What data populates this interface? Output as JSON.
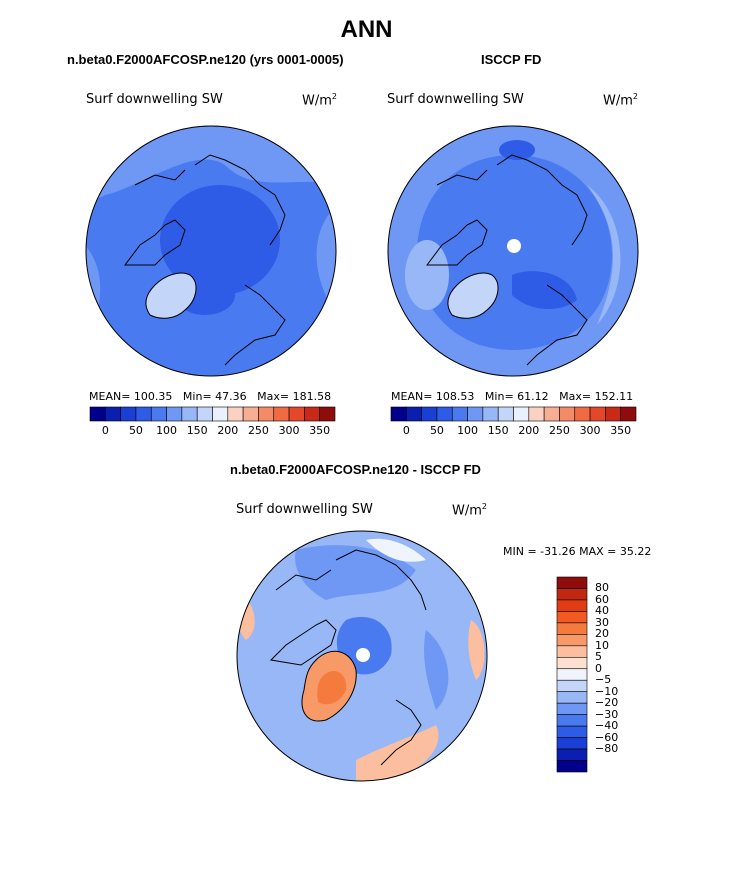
{
  "title": "ANN",
  "panels": [
    {
      "case": "n.beta0.F2000AFCOSP.ne120 (yrs 0001-0005)",
      "variable": "Surf downwelling SW",
      "units_prefix": "W/m",
      "units_sup": "2",
      "mean_label": "MEAN=",
      "mean": "100.35",
      "min_label": "Min=",
      "min": "47.36",
      "max_label": "Max=",
      "max": "181.58"
    },
    {
      "case": "ISCCP FD",
      "variable": "Surf downwelling SW",
      "units_prefix": "W/m",
      "units_sup": "2",
      "mean_label": "MEAN=",
      "mean": "108.53",
      "min_label": "Min=",
      "min": "61.12",
      "max_label": "Max=",
      "max": "152.11"
    },
    {
      "case": "n.beta0.F2000AFCOSP.ne120 - ISCCP FD",
      "variable": "Surf downwelling SW",
      "units_prefix": "W/m",
      "units_sup": "2",
      "minmax_text": "MIN = -31.26 MAX =  35.22"
    }
  ],
  "colorbar_abs": {
    "colors": [
      "#00008c",
      "#0a1fb0",
      "#1a3fd4",
      "#2e5ce6",
      "#4a7af0",
      "#6f98f5",
      "#97b7f7",
      "#c3d6fa",
      "#eaf0fc",
      "#fbd2c2",
      "#f8ae92",
      "#f58a66",
      "#f06a42",
      "#e4482a",
      "#c82a16",
      "#8e0c0c"
    ],
    "ticks": [
      "0",
      "50",
      "100",
      "150",
      "200",
      "250",
      "300",
      "350"
    ]
  },
  "colorbar_diff": {
    "colors": [
      "#8e0c0c",
      "#c0280f",
      "#e03c16",
      "#f25a22",
      "#f57a3e",
      "#f89a68",
      "#fbbfa0",
      "#fde0d0",
      "#f0f4fc",
      "#c3d6fa",
      "#97b7f7",
      "#6f98f5",
      "#4a7af0",
      "#2e5ce6",
      "#1a3fd4",
      "#0a1fb0",
      "#00008c"
    ],
    "labels": [
      "80",
      "60",
      "40",
      "30",
      "20",
      "10",
      "5",
      "0",
      "-5",
      "-10",
      "-20",
      "-30",
      "-40",
      "-60",
      "-80"
    ]
  },
  "map_colors": {
    "ocean_base": "#4a7af0",
    "deep": "#2e5ce6",
    "light": "#6f98f5",
    "pale": "#97b7f7",
    "very_pale": "#c3d6fa",
    "diff_base": "#97b7f7",
    "diff_mid": "#6f98f5",
    "diff_white": "#f0f4fc",
    "diff_warm": "#fbbfa0",
    "diff_hot": "#f57a3e"
  }
}
